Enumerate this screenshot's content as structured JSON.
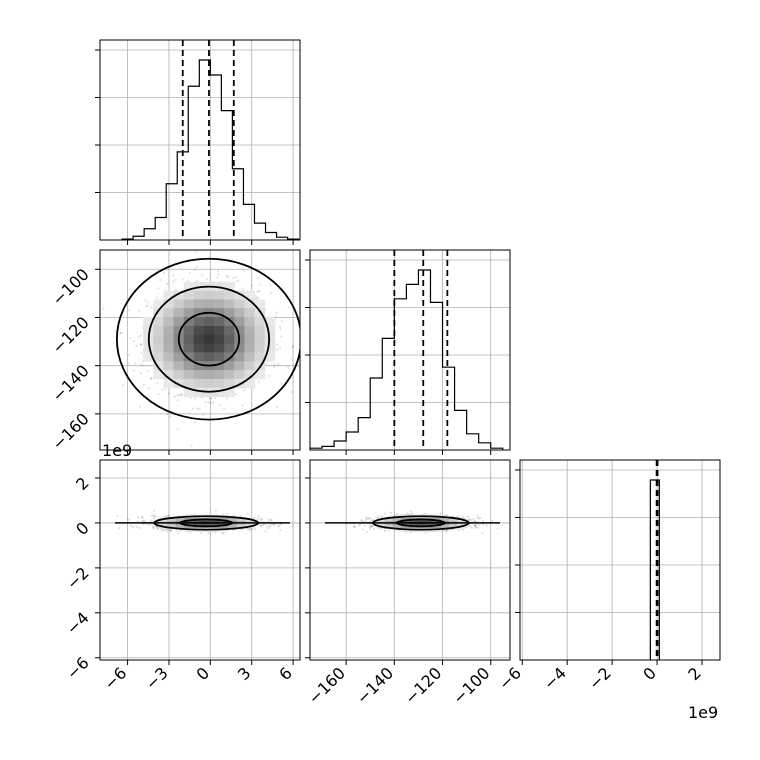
{
  "chart_data": {
    "type": "corner",
    "title": "",
    "parameters": [
      {
        "index": 0,
        "range": [
          -8,
          6.5
        ],
        "ticks": [
          -6,
          -3,
          0,
          3,
          6
        ],
        "tick_labels": [
          "−6",
          "−3",
          "0",
          "3",
          "6"
        ],
        "offset_text": ""
      },
      {
        "index": 1,
        "range": [
          -175,
          -92
        ],
        "ticks": [
          -160,
          -140,
          -120,
          -100
        ],
        "tick_labels": [
          "−160",
          "−140",
          "−120",
          "−100"
        ],
        "offset_text": ""
      },
      {
        "index": 2,
        "range": [
          -6.1,
          2.8
        ],
        "ticks": [
          -6,
          -4,
          -2,
          0,
          2
        ],
        "tick_labels": [
          "−6",
          "−4",
          "−2",
          "0",
          "2"
        ],
        "offset_text": "1e9",
        "unit_scale": 1000000000.0
      }
    ],
    "histograms": [
      {
        "param": 0,
        "bin_edges": [
          -6.4,
          -5.6,
          -4.8,
          -4.0,
          -3.2,
          -2.4,
          -1.6,
          -0.8,
          0.0,
          0.8,
          1.6,
          2.4,
          3.2,
          4.0,
          4.8,
          5.6,
          6.4
        ],
        "counts": [
          0.005,
          0.02,
          0.06,
          0.12,
          0.3,
          0.47,
          0.82,
          0.96,
          0.88,
          0.69,
          0.38,
          0.19,
          0.09,
          0.04,
          0.015,
          0.005
        ],
        "quantiles": [
          -2.0,
          -0.1,
          1.7
        ]
      },
      {
        "param": 1,
        "bin_edges": [
          -175,
          -170,
          -165,
          -160,
          -155,
          -150,
          -145,
          -140,
          -135,
          -130,
          -125,
          -120,
          -115,
          -110,
          -105,
          -100,
          -95
        ],
        "counts": [
          0.01,
          0.02,
          0.05,
          0.1,
          0.18,
          0.4,
          0.62,
          0.84,
          0.92,
          1.0,
          0.82,
          0.46,
          0.22,
          0.09,
          0.04,
          0.01
        ],
        "quantiles": [
          -140,
          -128,
          -118
        ]
      },
      {
        "param": 2,
        "bin_edges": [
          -0.3,
          0.1
        ],
        "counts": [
          1.0
        ],
        "quantiles": [
          -0.02,
          0.0,
          0.02
        ]
      }
    ],
    "density_2d": [
      {
        "x_param": 0,
        "y_param": 1,
        "center": [
          -0.1,
          -129
        ],
        "spread": [
          2.2,
          11
        ],
        "contour_levels": [
          0.39,
          0.86,
          0.99
        ],
        "scatter_density": "high"
      },
      {
        "x_param": 0,
        "y_param": 2,
        "center": [
          -0.3,
          0.0
        ],
        "spread": [
          1.9,
          0.15
        ],
        "contour_levels": [
          0.39,
          0.86
        ],
        "scatter_density": "high"
      },
      {
        "x_param": 1,
        "y_param": 2,
        "center": [
          -129,
          0.0
        ],
        "spread": [
          10,
          0.15
        ],
        "contour_levels": [
          0.39,
          0.86
        ],
        "scatter_density": "high"
      }
    ],
    "grid": true,
    "legend": "none",
    "colors": {
      "line": "#000000",
      "grid": "#b0b0b0",
      "points": "#000000"
    }
  }
}
